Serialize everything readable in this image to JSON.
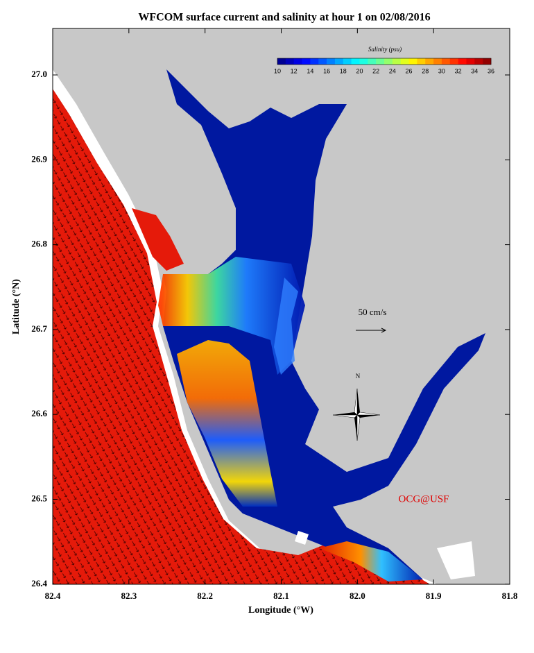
{
  "title": "WFCOM surface current and salinity at hour 1 on 02/08/2016",
  "x_axis": {
    "label": "Longitude (°W)",
    "ticks": [
      "82.4",
      "82.3",
      "82.2",
      "82.1",
      "82.0",
      "81.9",
      "81.8"
    ]
  },
  "y_axis": {
    "label": "Latitude (°N)",
    "ticks": [
      "27.0",
      "26.9",
      "26.8",
      "26.7",
      "26.6",
      "26.5",
      "26.4"
    ]
  },
  "colorbar": {
    "title": "Salinity (psu)",
    "ticks": [
      "10",
      "12",
      "14",
      "16",
      "18",
      "20",
      "22",
      "24",
      "26",
      "28",
      "30",
      "32",
      "34",
      "36"
    ]
  },
  "scale_label": "50 cm/s",
  "compass": "N",
  "credit": "OCG@USF"
}
